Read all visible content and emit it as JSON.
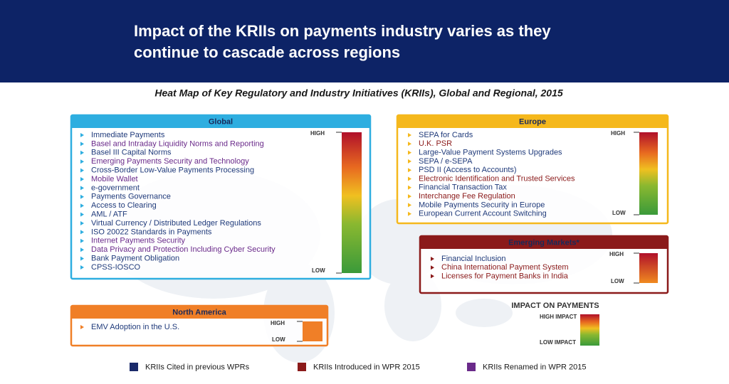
{
  "header": {
    "title": [
      "Impact of the KRIIs on payments industry varies as they",
      "continue to cascade across regions"
    ]
  },
  "subtitle": "Heat Map of Key Regulatory and Industry Initiatives (KRIIs), Global and Regional, 2015",
  "panels": [
    {
      "title": "Global",
      "color": "#2eaee0",
      "scale": {
        "high": "HIGH",
        "low": "LOW"
      },
      "items": [
        {
          "text": "Immediate Payments",
          "color": "#1f3a7a"
        },
        {
          "text": "Basel and Intraday Liquidity Norms and Reporting",
          "color": "#6a2a8a"
        },
        {
          "text": "Basel III Capital Norms",
          "color": "#1f3a7a"
        },
        {
          "text": "Emerging Payments Security and Technology",
          "color": "#6a2a8a"
        },
        {
          "text": "Cross-Border Low-Value Payments Processing",
          "color": "#1f3a7a"
        },
        {
          "text": "Mobile Wallet",
          "color": "#6a2a8a"
        },
        {
          "text": "e-government",
          "color": "#1f3a7a"
        },
        {
          "text": "Payments Governance",
          "color": "#1f3a7a"
        },
        {
          "text": "Access to Clearing",
          "color": "#1f3a7a"
        },
        {
          "text": "AML / ATF",
          "color": "#1f3a7a"
        },
        {
          "text": "Virtual Currency / Distributed Ledger Regulations",
          "color": "#1f3a7a"
        },
        {
          "text": "ISO 20022 Standards in Payments",
          "color": "#1f3a7a"
        },
        {
          "text": "Internet Payments Security",
          "color": "#6a2a8a"
        },
        {
          "text": "Data Privacy and Protection Including Cyber Security",
          "color": "#6a2a8a"
        },
        {
          "text": "Bank Payment Obligation",
          "color": "#1f3a7a"
        },
        {
          "text": "CPSS-IOSCO",
          "color": "#1f3a7a"
        }
      ]
    },
    {
      "title": "Europe",
      "color": "#f5b81c",
      "scale": {
        "high": "HIGH",
        "low": "LOW"
      },
      "items": [
        {
          "text": "SEPA for Cards",
          "color": "#1f3a7a"
        },
        {
          "text": "U.K. PSR",
          "color": "#8b1a1a"
        },
        {
          "text": "Large-Value Payment Systems Upgrades",
          "color": "#1f3a7a"
        },
        {
          "text": "SEPA / e-SEPA",
          "color": "#1f3a7a"
        },
        {
          "text": "PSD II (Access to Accounts)",
          "color": "#1f3a7a"
        },
        {
          "text": "Electronic Identification and Trusted Services",
          "color": "#8b1a1a"
        },
        {
          "text": "Financial Transaction Tax",
          "color": "#1f3a7a"
        },
        {
          "text": "Interchange Fee Regulation",
          "color": "#8b1a1a"
        },
        {
          "text": "Mobile Payments Security in Europe",
          "color": "#1f3a7a"
        },
        {
          "text": "European Current Account Switching",
          "color": "#1f3a7a"
        }
      ]
    },
    {
      "title": "Emerging Markets*",
      "color": "#8b1a1a",
      "scale": {
        "high": "HIGH",
        "low": "LOW"
      },
      "items": [
        {
          "text": "Financial Inclusion",
          "color": "#1f3a7a"
        },
        {
          "text": "China International Payment System",
          "color": "#8b1a1a"
        },
        {
          "text": "Licenses for Payment Banks in India",
          "color": "#8b1a1a"
        }
      ]
    },
    {
      "title": "North America",
      "color": "#f07f27",
      "scale": {
        "high": "HIGH",
        "low": "LOW"
      },
      "items": [
        {
          "text": "EMV Adoption in the U.S.",
          "color": "#1f3a7a"
        }
      ]
    }
  ],
  "impact": {
    "title": "IMPACT ON PAYMENTS",
    "high": "HIGH IMPACT",
    "low": "LOW IMPACT"
  },
  "legend": [
    {
      "text": "KRIIs Cited in previous WPRs",
      "color": "#1a2a6a"
    },
    {
      "text": "KRIIs Introduced in WPR 2015",
      "color": "#8b1a1a"
    },
    {
      "text": "KRIIs Renamed in WPR 2015",
      "color": "#6a2a8a"
    }
  ]
}
